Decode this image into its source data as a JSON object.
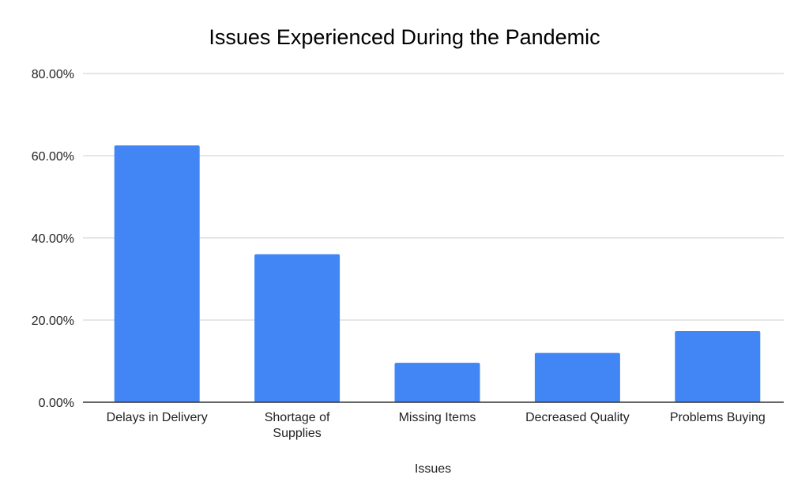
{
  "chart_data": {
    "type": "bar",
    "title": "Issues Experienced During the Pandemic",
    "xlabel": "Issues",
    "ylabel": "",
    "categories": [
      [
        "Delays in Delivery"
      ],
      [
        "Shortage of",
        "Supplies"
      ],
      [
        "Missing Items"
      ],
      [
        "Decreased Quality"
      ],
      [
        "Problems Buying"
      ]
    ],
    "values": [
      62.5,
      36.0,
      9.6,
      12.0,
      17.3
    ],
    "ylim": [
      0,
      80
    ],
    "yticks": [
      "0.00%",
      "20.00%",
      "40.00%",
      "60.00%",
      "80.00%"
    ],
    "grid": true,
    "legend": "none",
    "bar_color": "#4285f4"
  }
}
